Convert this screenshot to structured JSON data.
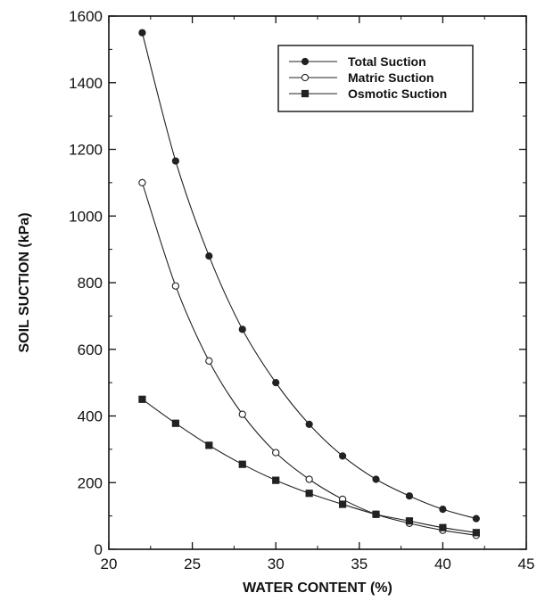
{
  "chart_data": {
    "type": "line",
    "xlabel": "WATER CONTENT (%)",
    "ylabel": "SOIL SUCTION (kPa)",
    "xlim": [
      20,
      45
    ],
    "ylim": [
      0,
      1600
    ],
    "x_ticks": [
      20,
      25,
      30,
      35,
      40,
      45
    ],
    "y_ticks": [
      0,
      200,
      400,
      600,
      800,
      1000,
      1200,
      1400,
      1600
    ],
    "grid": false,
    "legend_position": "top-right",
    "x": [
      22,
      24,
      26,
      28,
      30,
      32,
      34,
      36,
      38,
      40,
      42
    ],
    "series": [
      {
        "name": "Total Suction",
        "marker": "filled-circle",
        "values": [
          1550,
          1165,
          880,
          660,
          500,
          375,
          280,
          210,
          160,
          120,
          92
        ]
      },
      {
        "name": "Matric Suction",
        "marker": "open-circle",
        "values": [
          1100,
          790,
          565,
          405,
          290,
          210,
          150,
          105,
          78,
          57,
          42
        ]
      },
      {
        "name": "Osmotic Suction",
        "marker": "filled-square",
        "values": [
          450,
          378,
          312,
          255,
          207,
          168,
          135,
          105,
          85,
          65,
          50
        ]
      }
    ],
    "colors": {
      "line": "#222222",
      "axis": "#111111"
    }
  }
}
